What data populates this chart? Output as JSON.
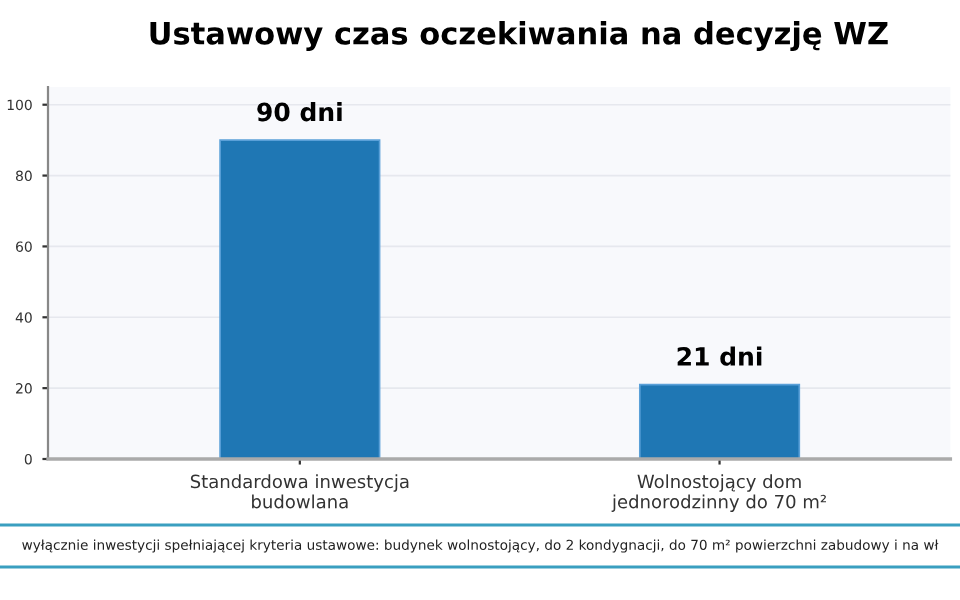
{
  "chart_data": {
    "type": "bar",
    "title": "Ustawowy czas oczekiwania na decyzję WZ",
    "categories": [
      "Standardowa inwestycja\nbudowlana",
      "Wolnostojący dom\njednorodzinny do 70 m²"
    ],
    "values": [
      90,
      21
    ],
    "color": "#1f77b4",
    "value_labels": [
      "90 dni",
      "21 dni"
    ],
    "ylim": [
      0,
      105
    ],
    "yticks": [
      0,
      20,
      40,
      60,
      80,
      100
    ],
    "grid": "y",
    "annotations": [
      "wyłącznie inwestycji spełniającej kryteria ustawowe: budynek wolnostojący, do 2 kondygnacji, do 70 m² powierzchni zabudowy i na wł"
    ]
  }
}
